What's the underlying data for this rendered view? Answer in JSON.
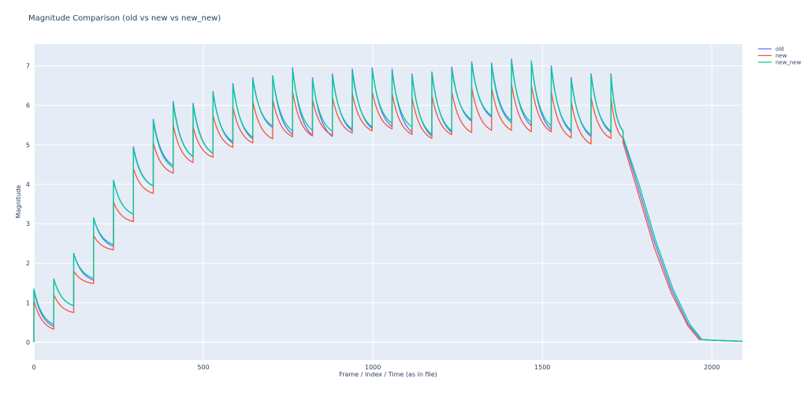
{
  "chart_data": {
    "type": "line",
    "title": "Magnitude Comparison (old vs new vs new_new)",
    "xlabel": "Frame / Index / Time (as in file)",
    "ylabel": "Magnitude",
    "xlim": [
      0,
      2090
    ],
    "ylim": [
      -0.45,
      7.55
    ],
    "x_ticks": [
      0,
      500,
      1000,
      1500,
      2000
    ],
    "y_ticks": [
      0,
      1,
      2,
      3,
      4,
      5,
      6,
      7
    ],
    "grid": true,
    "legend_position": "top-right",
    "cycle": {
      "period": 58.7,
      "start": 0,
      "count": 30,
      "tail_start": 1738,
      "floor_reach": 1967,
      "end": 2090,
      "end_value": 0.02
    },
    "series": [
      {
        "name": "old",
        "color": "#636efa",
        "peaks": [
          1.3,
          1.6,
          2.25,
          3.15,
          4.1,
          4.95,
          5.65,
          6.1,
          6.05,
          6.35,
          6.55,
          6.7,
          6.75,
          6.95,
          6.7,
          6.8,
          6.92,
          6.95,
          6.92,
          6.8,
          6.85,
          6.97,
          7.1,
          7.07,
          7.17,
          7.12,
          7.0,
          6.7,
          6.8,
          6.8
        ],
        "decay_end": [
          0.3,
          0.85,
          1.5,
          2.35,
          3.15,
          3.85,
          4.35,
          4.55,
          4.65,
          4.9,
          5.0,
          5.3,
          5.1,
          5.05,
          5.05,
          5.2,
          5.25,
          5.3,
          5.15,
          5.05,
          5.15,
          5.45,
          5.55,
          5.45,
          5.3,
          5.2,
          5.15,
          5.05,
          5.15,
          5.2
        ],
        "tail": [
          [
            1738,
            5.15
          ],
          [
            1780,
            4.0
          ],
          [
            1830,
            2.55
          ],
          [
            1880,
            1.35
          ],
          [
            1930,
            0.45
          ],
          [
            1967,
            0.07
          ],
          [
            2000,
            0.05
          ],
          [
            2090,
            0.02
          ]
        ]
      },
      {
        "name": "new",
        "color": "#ef553b",
        "peaks": [
          1.05,
          1.2,
          1.8,
          2.7,
          3.55,
          4.4,
          5.05,
          5.5,
          5.45,
          5.75,
          5.95,
          6.1,
          6.15,
          6.35,
          6.15,
          6.2,
          6.3,
          6.35,
          6.3,
          6.2,
          6.25,
          6.35,
          6.45,
          6.45,
          6.55,
          6.52,
          6.35,
          6.1,
          6.2,
          6.2
        ],
        "decay_end": [
          0.25,
          0.7,
          1.45,
          2.3,
          3.0,
          3.7,
          4.2,
          4.45,
          4.6,
          4.85,
          4.95,
          5.05,
          5.1,
          5.1,
          5.15,
          5.2,
          5.25,
          5.3,
          5.15,
          5.05,
          5.15,
          5.2,
          5.25,
          5.25,
          5.2,
          5.2,
          5.05,
          4.9,
          5.05,
          5.05
        ],
        "tail": [
          [
            1738,
            5.05
          ],
          [
            1780,
            3.85
          ],
          [
            1830,
            2.4
          ],
          [
            1880,
            1.25
          ],
          [
            1930,
            0.4
          ],
          [
            1962,
            0.07
          ],
          [
            2000,
            0.05
          ],
          [
            2090,
            0.02
          ]
        ]
      },
      {
        "name": "new_new",
        "color": "#00cc96",
        "peaks": [
          1.35,
          1.6,
          2.25,
          3.15,
          4.1,
          4.9,
          5.6,
          6.05,
          6.0,
          6.3,
          6.5,
          6.65,
          6.75,
          6.9,
          6.65,
          6.75,
          6.85,
          6.9,
          6.85,
          6.75,
          6.8,
          6.9,
          7.05,
          7.02,
          7.1,
          7.1,
          6.95,
          6.65,
          6.75,
          6.75
        ],
        "decay_end": [
          0.35,
          0.85,
          1.55,
          2.4,
          3.15,
          3.85,
          4.3,
          4.55,
          4.65,
          4.95,
          5.05,
          5.35,
          5.2,
          5.2,
          5.2,
          5.25,
          5.3,
          5.4,
          5.3,
          5.1,
          5.2,
          5.5,
          5.6,
          5.4,
          5.4,
          5.3,
          5.2,
          5.1,
          5.2,
          5.2
        ],
        "tail": [
          [
            1738,
            5.2
          ],
          [
            1785,
            4.0
          ],
          [
            1835,
            2.55
          ],
          [
            1885,
            1.35
          ],
          [
            1935,
            0.45
          ],
          [
            1970,
            0.07
          ],
          [
            2000,
            0.05
          ],
          [
            2090,
            0.02
          ]
        ]
      }
    ]
  },
  "colors": {
    "plot_bg": "#e5ecf6",
    "grid": "#ffffff",
    "text": "#2a3f5f"
  }
}
